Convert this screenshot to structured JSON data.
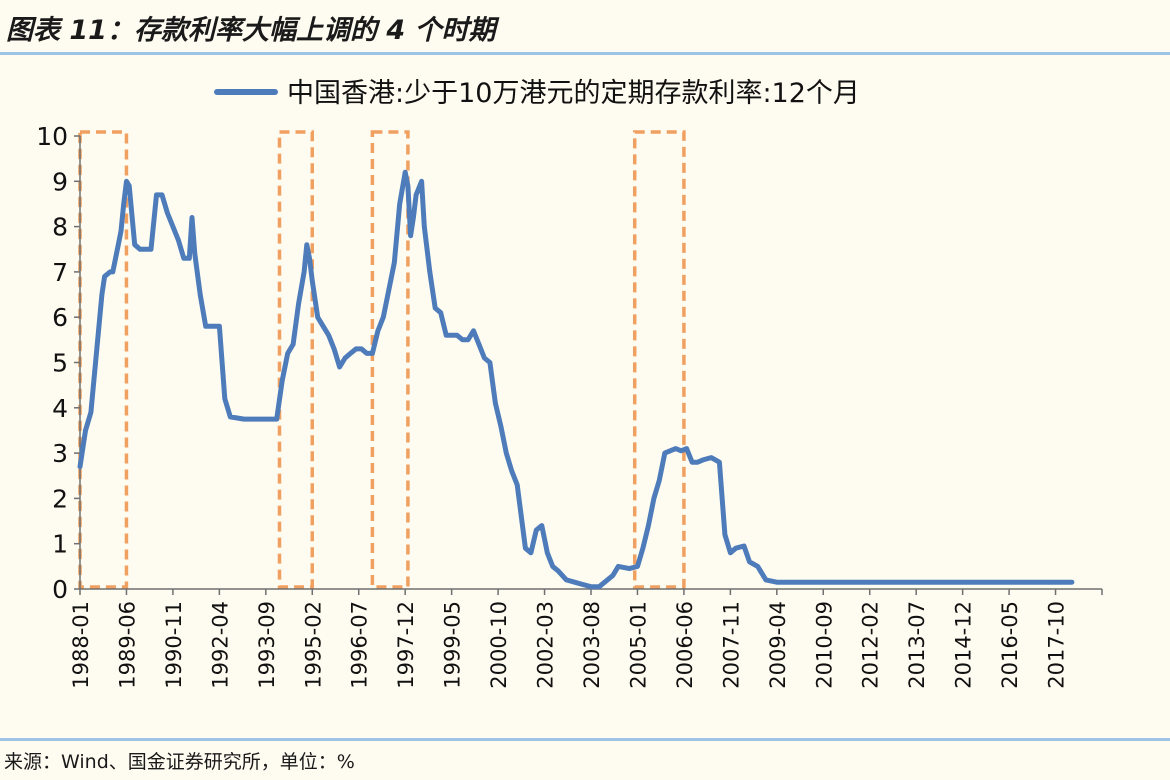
{
  "title": "图表 11：存款利率大幅上调的 4 个时期",
  "source_note": "来源：Wind、国金证券研究所，单位：%",
  "colors": {
    "line": "#4e7cba",
    "highlight": "#f0a060",
    "rule": "#9fc3e4",
    "background": "#fefcf1"
  },
  "chart_data": {
    "type": "line",
    "title": "",
    "xlabel": "",
    "ylabel": "",
    "ylim": [
      0,
      10
    ],
    "yticks": [
      "0",
      "1",
      "2",
      "3",
      "4",
      "5",
      "6",
      "7",
      "8",
      "9",
      "10"
    ],
    "xticks": [
      "1988-01",
      "1989-06",
      "1990-11",
      "1992-04",
      "1993-09",
      "1995-02",
      "1996-07",
      "1997-12",
      "1999-05",
      "2000-10",
      "2002-03",
      "2003-08",
      "2005-01",
      "2006-06",
      "2007-11",
      "2009-04",
      "2010-09",
      "2012-02",
      "2013-07",
      "2014-12",
      "2016-05",
      "2017-10"
    ],
    "legend": {
      "position": "top",
      "entries": [
        "中国香港:少于10万港元的定期存款利率:12个月"
      ]
    },
    "grid": false,
    "highlight_periods": [
      {
        "start": "1988-01",
        "end": "1989-06"
      },
      {
        "start": "1994-02",
        "end": "1995-02"
      },
      {
        "start": "1996-12",
        "end": "1998-01"
      },
      {
        "start": "2004-12",
        "end": "2006-06"
      }
    ],
    "series": [
      {
        "name": "中国香港:少于10万港元的定期存款利率:12个月",
        "points": [
          [
            "1988-01",
            2.7
          ],
          [
            "1988-03",
            3.5
          ],
          [
            "1988-05",
            3.9
          ],
          [
            "1988-07",
            5.2
          ],
          [
            "1988-09",
            6.5
          ],
          [
            "1988-10",
            6.9
          ],
          [
            "1988-12",
            7.0
          ],
          [
            "1989-01",
            7.0
          ],
          [
            "1989-03",
            7.6
          ],
          [
            "1989-04",
            7.9
          ],
          [
            "1989-05",
            8.5
          ],
          [
            "1989-06",
            9.0
          ],
          [
            "1989-07",
            8.9
          ],
          [
            "1989-09",
            7.6
          ],
          [
            "1989-11",
            7.5
          ],
          [
            "1990-03",
            7.5
          ],
          [
            "1990-05",
            8.7
          ],
          [
            "1990-07",
            8.7
          ],
          [
            "1990-09",
            8.3
          ],
          [
            "1990-11",
            8.0
          ],
          [
            "1991-01",
            7.7
          ],
          [
            "1991-03",
            7.3
          ],
          [
            "1991-05",
            7.3
          ],
          [
            "1991-06",
            8.2
          ],
          [
            "1991-07",
            7.4
          ],
          [
            "1991-09",
            6.5
          ],
          [
            "1991-11",
            5.8
          ],
          [
            "1992-01",
            5.8
          ],
          [
            "1992-04",
            5.8
          ],
          [
            "1992-06",
            4.2
          ],
          [
            "1992-08",
            3.8
          ],
          [
            "1993-01",
            3.75
          ],
          [
            "1993-06",
            3.75
          ],
          [
            "1993-09",
            3.75
          ],
          [
            "1994-01",
            3.75
          ],
          [
            "1994-03",
            4.6
          ],
          [
            "1994-05",
            5.2
          ],
          [
            "1994-07",
            5.4
          ],
          [
            "1994-09",
            6.3
          ],
          [
            "1994-11",
            7.0
          ],
          [
            "1994-12",
            7.6
          ],
          [
            "1995-01",
            7.3
          ],
          [
            "1995-02",
            6.8
          ],
          [
            "1995-04",
            6.0
          ],
          [
            "1995-06",
            5.8
          ],
          [
            "1995-08",
            5.6
          ],
          [
            "1995-10",
            5.3
          ],
          [
            "1995-12",
            4.9
          ],
          [
            "1996-02",
            5.1
          ],
          [
            "1996-04",
            5.2
          ],
          [
            "1996-06",
            5.3
          ],
          [
            "1996-08",
            5.3
          ],
          [
            "1996-10",
            5.2
          ],
          [
            "1996-12",
            5.2
          ],
          [
            "1997-02",
            5.7
          ],
          [
            "1997-04",
            6.0
          ],
          [
            "1997-06",
            6.6
          ],
          [
            "1997-08",
            7.2
          ],
          [
            "1997-10",
            8.5
          ],
          [
            "1997-12",
            9.2
          ],
          [
            "1998-01",
            8.9
          ],
          [
            "1998-02",
            7.8
          ],
          [
            "1998-03",
            8.2
          ],
          [
            "1998-04",
            8.7
          ],
          [
            "1998-06",
            9.0
          ],
          [
            "1998-07",
            8.0
          ],
          [
            "1998-09",
            7.0
          ],
          [
            "1998-11",
            6.2
          ],
          [
            "1999-01",
            6.1
          ],
          [
            "1999-03",
            5.6
          ],
          [
            "1999-05",
            5.6
          ],
          [
            "1999-07",
            5.6
          ],
          [
            "1999-09",
            5.5
          ],
          [
            "1999-11",
            5.5
          ],
          [
            "2000-01",
            5.7
          ],
          [
            "2000-03",
            5.4
          ],
          [
            "2000-05",
            5.1
          ],
          [
            "2000-07",
            5.0
          ],
          [
            "2000-09",
            4.1
          ],
          [
            "2000-11",
            3.6
          ],
          [
            "2001-01",
            3.0
          ],
          [
            "2001-03",
            2.6
          ],
          [
            "2001-05",
            2.3
          ],
          [
            "2001-08",
            0.9
          ],
          [
            "2001-10",
            0.8
          ],
          [
            "2001-12",
            1.3
          ],
          [
            "2002-02",
            1.4
          ],
          [
            "2002-04",
            0.8
          ],
          [
            "2002-06",
            0.5
          ],
          [
            "2002-08",
            0.4
          ],
          [
            "2002-11",
            0.2
          ],
          [
            "2003-02",
            0.15
          ],
          [
            "2003-05",
            0.1
          ],
          [
            "2003-08",
            0.05
          ],
          [
            "2003-11",
            0.05
          ],
          [
            "2004-02",
            0.2
          ],
          [
            "2004-04",
            0.3
          ],
          [
            "2004-06",
            0.5
          ],
          [
            "2004-10",
            0.45
          ],
          [
            "2005-01",
            0.5
          ],
          [
            "2005-03",
            0.9
          ],
          [
            "2005-05",
            1.4
          ],
          [
            "2005-07",
            2.0
          ],
          [
            "2005-09",
            2.4
          ],
          [
            "2005-11",
            3.0
          ],
          [
            "2006-01",
            3.05
          ],
          [
            "2006-03",
            3.1
          ],
          [
            "2006-05",
            3.05
          ],
          [
            "2006-07",
            3.1
          ],
          [
            "2006-09",
            2.8
          ],
          [
            "2006-11",
            2.8
          ],
          [
            "2007-01",
            2.85
          ],
          [
            "2007-04",
            2.9
          ],
          [
            "2007-07",
            2.8
          ],
          [
            "2007-09",
            1.2
          ],
          [
            "2007-11",
            0.8
          ],
          [
            "2008-01",
            0.9
          ],
          [
            "2008-04",
            0.95
          ],
          [
            "2008-06",
            0.6
          ],
          [
            "2008-09",
            0.5
          ],
          [
            "2008-12",
            0.2
          ],
          [
            "2009-04",
            0.15
          ],
          [
            "2010-01",
            0.15
          ],
          [
            "2011-01",
            0.15
          ],
          [
            "2012-01",
            0.15
          ],
          [
            "2013-01",
            0.15
          ],
          [
            "2014-01",
            0.15
          ],
          [
            "2015-01",
            0.15
          ],
          [
            "2016-01",
            0.15
          ],
          [
            "2017-01",
            0.15
          ],
          [
            "2018-04",
            0.15
          ]
        ]
      }
    ]
  }
}
